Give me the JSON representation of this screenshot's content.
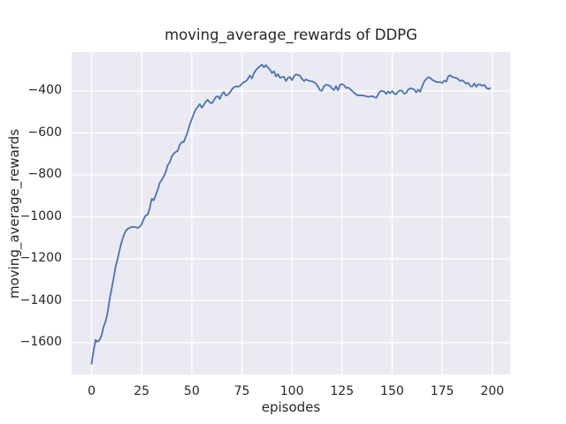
{
  "figure": {
    "background_color": "#ffffff"
  },
  "chart_data": {
    "type": "line",
    "title": "moving_average_rewards of DDPG",
    "xlabel": "episodes",
    "ylabel": "moving_average_rewards",
    "grid": true,
    "legend": "none",
    "xlim": [
      -9.95,
      208.95
    ],
    "ylim": [
      -1752,
      -215
    ],
    "xticks": {
      "values": [
        0,
        25,
        50,
        75,
        100,
        125,
        150,
        175,
        200
      ],
      "labels": [
        "0",
        "25",
        "50",
        "75",
        "100",
        "125",
        "150",
        "175",
        "200"
      ]
    },
    "yticks": {
      "values": [
        -400,
        -600,
        -800,
        -1000,
        -1200,
        -1400,
        -1600
      ],
      "labels": [
        "−400",
        "−600",
        "−800",
        "−1000",
        "−1200",
        "−1400",
        "−1600"
      ]
    },
    "style": {
      "plot_bg": "#eaeaf2",
      "grid_color": "#ffffff",
      "text_color": "#262626",
      "line_width": 1.8,
      "grid_width": 1.3
    },
    "series": [
      {
        "name": "moving_average_rewards",
        "color": "#4c72b0",
        "x_start": 0,
        "x_step": 1,
        "values": [
          -1701,
          -1638,
          -1587,
          -1596,
          -1587,
          -1566,
          -1524,
          -1499,
          -1457,
          -1394,
          -1343,
          -1293,
          -1238,
          -1200,
          -1158,
          -1120,
          -1090,
          -1069,
          -1057,
          -1053,
          -1048,
          -1048,
          -1050,
          -1053,
          -1048,
          -1036,
          -1011,
          -994,
          -990,
          -960,
          -914,
          -922,
          -897,
          -872,
          -838,
          -825,
          -808,
          -787,
          -754,
          -741,
          -712,
          -699,
          -691,
          -686,
          -657,
          -644,
          -644,
          -619,
          -594,
          -560,
          -535,
          -509,
          -488,
          -476,
          -463,
          -480,
          -467,
          -451,
          -442,
          -455,
          -459,
          -446,
          -429,
          -425,
          -438,
          -415,
          -405,
          -422,
          -418,
          -408,
          -393,
          -383,
          -379,
          -379,
          -377,
          -366,
          -358,
          -354,
          -343,
          -326,
          -341,
          -316,
          -301,
          -291,
          -282,
          -274,
          -287,
          -277,
          -288,
          -298,
          -315,
          -306,
          -331,
          -320,
          -337,
          -334,
          -333,
          -353,
          -337,
          -334,
          -349,
          -331,
          -321,
          -324,
          -327,
          -343,
          -353,
          -345,
          -350,
          -353,
          -354,
          -359,
          -366,
          -379,
          -397,
          -399,
          -377,
          -371,
          -372,
          -376,
          -388,
          -396,
          -377,
          -397,
          -370,
          -367,
          -373,
          -386,
          -384,
          -391,
          -399,
          -409,
          -417,
          -421,
          -421,
          -421,
          -423,
          -425,
          -429,
          -426,
          -425,
          -429,
          -433,
          -418,
          -402,
          -400,
          -403,
          -414,
          -402,
          -411,
          -400,
          -413,
          -416,
          -403,
          -397,
          -400,
          -413,
          -410,
          -394,
          -388,
          -389,
          -393,
          -407,
          -394,
          -404,
          -377,
          -355,
          -343,
          -334,
          -338,
          -347,
          -352,
          -357,
          -358,
          -359,
          -362,
          -351,
          -356,
          -330,
          -325,
          -334,
          -336,
          -338,
          -345,
          -353,
          -349,
          -357,
          -366,
          -361,
          -377,
          -379,
          -364,
          -380,
          -368,
          -370,
          -376,
          -371,
          -385,
          -391,
          -387
        ]
      }
    ]
  }
}
